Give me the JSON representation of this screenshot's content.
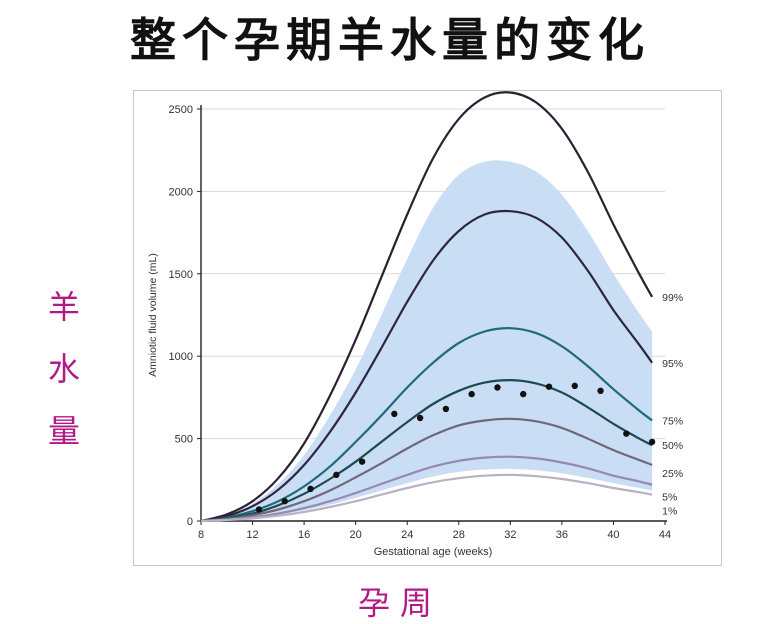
{
  "page": {
    "title": "整个孕期羊水量的变化",
    "side_label": [
      "羊",
      "水",
      "量"
    ],
    "bottom_label": "孕周"
  },
  "chart_data": {
    "type": "line",
    "xlabel": "Gestational age (weeks)",
    "ylabel": "Amniotic fluid volume (mL)",
    "xlim": [
      8,
      44
    ],
    "ylim": [
      0,
      2500
    ],
    "x_ticks": [
      8,
      12,
      16,
      20,
      24,
      28,
      32,
      36,
      40,
      44
    ],
    "y_ticks": [
      0,
      500,
      1000,
      1500,
      2000,
      2500
    ],
    "grid": "horizontal",
    "band_color": "#c6dcf3",
    "series": [
      {
        "name": "99%",
        "color": "#2a2233",
        "x": [
          8,
          10,
          12,
          14,
          16,
          18,
          20,
          22,
          24,
          26,
          28,
          30,
          32,
          34,
          36,
          38,
          40,
          42,
          43
        ],
        "values": [
          0,
          40,
          120,
          260,
          470,
          760,
          1100,
          1480,
          1860,
          2200,
          2440,
          2570,
          2600,
          2540,
          2380,
          2120,
          1800,
          1500,
          1360
        ]
      },
      {
        "name": "95%",
        "color": "#2f2542",
        "x": [
          8,
          10,
          12,
          14,
          16,
          18,
          20,
          22,
          24,
          26,
          28,
          30,
          32,
          34,
          36,
          38,
          40,
          42,
          43
        ],
        "values": [
          0,
          30,
          90,
          190,
          340,
          540,
          780,
          1050,
          1330,
          1580,
          1760,
          1860,
          1880,
          1840,
          1720,
          1520,
          1280,
          1070,
          960
        ]
      },
      {
        "name": "75%",
        "color": "#1f6b7d",
        "x": [
          8,
          10,
          12,
          14,
          16,
          18,
          20,
          22,
          24,
          26,
          28,
          30,
          32,
          34,
          36,
          38,
          40,
          42,
          43
        ],
        "values": [
          0,
          20,
          60,
          120,
          210,
          330,
          480,
          640,
          810,
          960,
          1080,
          1150,
          1170,
          1140,
          1060,
          940,
          800,
          670,
          610
        ]
      },
      {
        "name": "50%",
        "color": "#1d4a50",
        "x": [
          8,
          10,
          12,
          14,
          16,
          18,
          20,
          22,
          24,
          26,
          28,
          30,
          32,
          34,
          36,
          38,
          40,
          42,
          43
        ],
        "values": [
          0,
          15,
          45,
          95,
          165,
          255,
          360,
          480,
          600,
          710,
          790,
          840,
          855,
          835,
          780,
          690,
          590,
          500,
          460
        ]
      },
      {
        "name": "25%",
        "color": "#6f6878",
        "x": [
          8,
          10,
          12,
          14,
          16,
          18,
          20,
          22,
          24,
          26,
          28,
          30,
          32,
          34,
          36,
          38,
          40,
          42,
          43
        ],
        "values": [
          0,
          12,
          35,
          70,
          120,
          185,
          265,
          350,
          440,
          520,
          580,
          610,
          620,
          605,
          565,
          500,
          430,
          370,
          340
        ]
      },
      {
        "name": "5%",
        "color": "#9688b4",
        "x": [
          8,
          10,
          12,
          14,
          16,
          18,
          20,
          22,
          24,
          26,
          28,
          30,
          32,
          34,
          36,
          38,
          40,
          42,
          43
        ],
        "values": [
          0,
          8,
          22,
          45,
          78,
          120,
          170,
          225,
          280,
          330,
          365,
          385,
          390,
          380,
          355,
          320,
          275,
          240,
          220
        ]
      },
      {
        "name": "1%",
        "color": "#b7b2c4",
        "x": [
          8,
          10,
          12,
          14,
          16,
          18,
          20,
          22,
          24,
          26,
          28,
          30,
          32,
          34,
          36,
          38,
          40,
          42,
          43
        ],
        "values": [
          0,
          6,
          16,
          32,
          55,
          85,
          120,
          160,
          200,
          235,
          260,
          275,
          280,
          272,
          255,
          230,
          200,
          175,
          160
        ]
      }
    ],
    "band": {
      "x": [
        8,
        10,
        12,
        14,
        16,
        18,
        20,
        22,
        24,
        26,
        28,
        30,
        32,
        34,
        36,
        38,
        40,
        42,
        43
      ],
      "upper": [
        0,
        35,
        105,
        225,
        400,
        640,
        920,
        1250,
        1590,
        1900,
        2100,
        2180,
        2180,
        2120,
        1980,
        1760,
        1500,
        1260,
        1150
      ],
      "lower": [
        0,
        7,
        18,
        38,
        64,
        98,
        140,
        185,
        230,
        270,
        298,
        312,
        316,
        308,
        290,
        262,
        230,
        200,
        185
      ]
    },
    "points": {
      "x": [
        12.5,
        14.5,
        16.5,
        18.5,
        20.5,
        23,
        25,
        27,
        29,
        31,
        33,
        35,
        37,
        39,
        41,
        43
      ],
      "y": [
        70,
        120,
        195,
        280,
        360,
        650,
        625,
        680,
        770,
        810,
        770,
        815,
        820,
        790,
        530,
        480
      ]
    }
  }
}
